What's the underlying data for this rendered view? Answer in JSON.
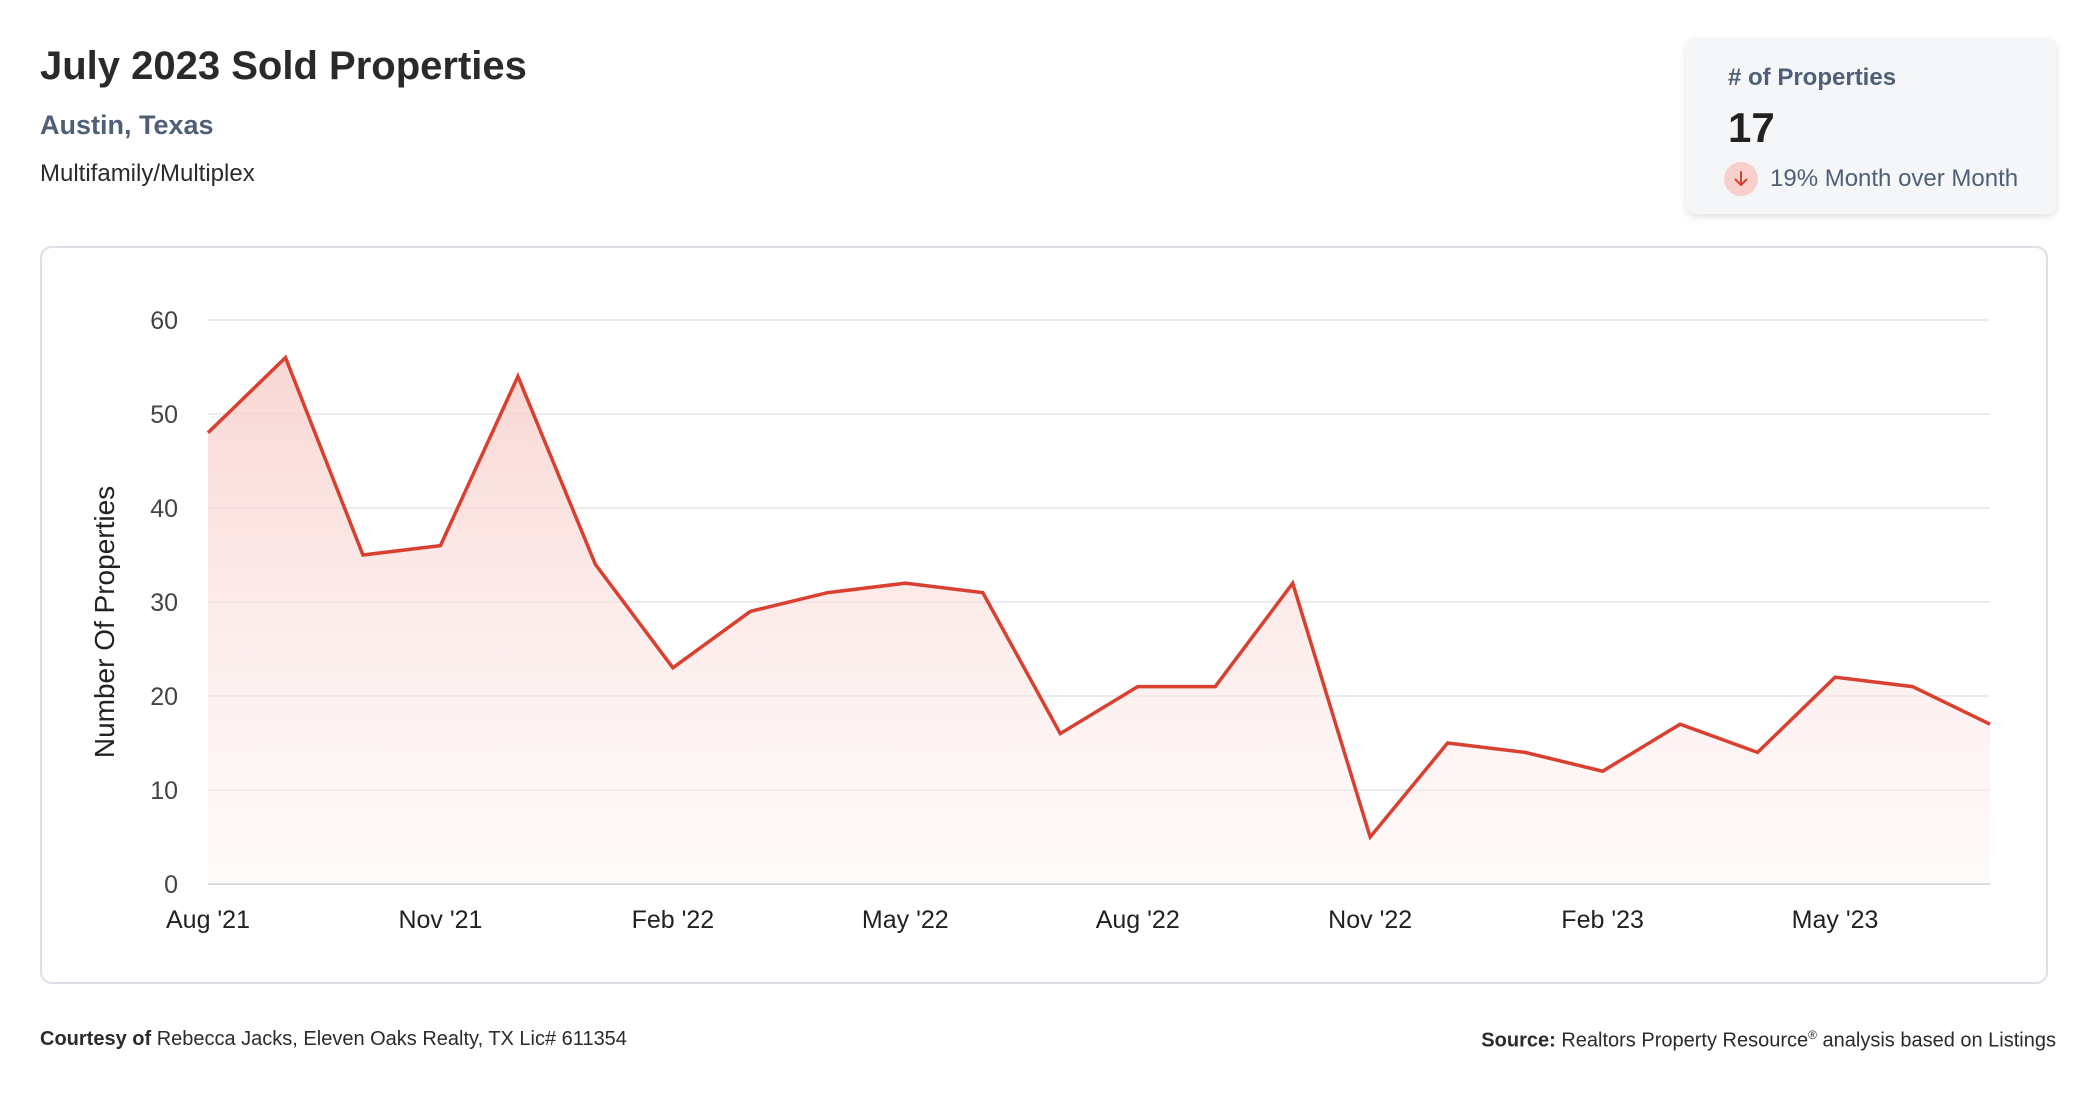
{
  "header": {
    "title": "July 2023 Sold Properties",
    "location": "Austin, Texas",
    "property_type": "Multifamily/Multiplex"
  },
  "stat_card": {
    "label": "# of Properties",
    "value": "17",
    "change_text": "19% Month over Month",
    "direction": "down",
    "icon": "arrow-down-icon"
  },
  "footer": {
    "courtesy_label": "Courtesy of",
    "courtesy_text": "Rebecca Jacks, Eleven Oaks Realty, TX Lic# 611354",
    "source_label": "Source:",
    "source_text_1": "Realtors Property Resource",
    "source_mark": "®",
    "source_text_2": " analysis based on Listings"
  },
  "colors": {
    "line": "#d94030",
    "fill_top": "#f7cfcb",
    "grid": "#e3e5ea",
    "axis_text": "#444444",
    "accent_text": "#4f5f77"
  },
  "chart_data": {
    "type": "area",
    "ylabel": "Number Of Properties",
    "xlabel": "",
    "ylim": [
      0,
      60
    ],
    "y_ticks": [
      0,
      10,
      20,
      30,
      40,
      50,
      60
    ],
    "x_tick_labels": [
      "Aug '21",
      "Nov '21",
      "Feb '22",
      "May '22",
      "Aug '22",
      "Nov '22",
      "Feb '23",
      "May '23"
    ],
    "x_tick_every": 3,
    "grid": true,
    "x": [
      "2021-08",
      "2021-09",
      "2021-10",
      "2021-11",
      "2021-12",
      "2022-01",
      "2022-02",
      "2022-03",
      "2022-04",
      "2022-05",
      "2022-06",
      "2022-07",
      "2022-08",
      "2022-09",
      "2022-10",
      "2022-11",
      "2022-12",
      "2023-01",
      "2023-02",
      "2023-03",
      "2023-04",
      "2023-05",
      "2023-06",
      "2023-07"
    ],
    "series": [
      {
        "values": [
          48,
          56,
          35,
          36,
          54,
          34,
          23,
          29,
          31,
          32,
          31,
          16,
          21,
          21,
          32,
          5,
          15,
          14,
          12,
          17,
          14,
          22,
          21,
          17
        ]
      }
    ]
  }
}
